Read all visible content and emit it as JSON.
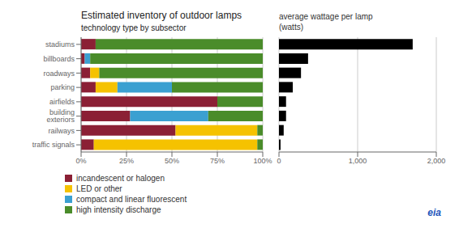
{
  "chart_data": [
    {
      "type": "bar",
      "title": "Estimated inventory of outdoor lamps",
      "subtitle": "technology type by subsector",
      "orientation": "horizontal",
      "stacked": true,
      "categories": [
        "traffic signals",
        "railways",
        "building exteriors",
        "airfields",
        "parking",
        "roadways",
        "billboards",
        "stadiums"
      ],
      "series": [
        {
          "name": "incandescent or halogen",
          "color": "#8B2035",
          "values": [
            7,
            52,
            27,
            75,
            8,
            5,
            2,
            8
          ]
        },
        {
          "name": "LED or other",
          "color": "#F5C200",
          "values": [
            90,
            45,
            0,
            0,
            12,
            5,
            0,
            0
          ]
        },
        {
          "name": "compact and linear fluorescent",
          "color": "#3BA0D1",
          "values": [
            0,
            0,
            43,
            0,
            30,
            0,
            3,
            0
          ]
        },
        {
          "name": "high intensity discharge",
          "color": "#4A8C2A",
          "values": [
            3,
            3,
            30,
            25,
            50,
            90,
            95,
            92
          ]
        }
      ],
      "xlim": [
        0,
        100
      ],
      "xticks": [
        {
          "value": 0,
          "label": "0%"
        },
        {
          "value": 25,
          "label": "25%"
        },
        {
          "value": 50,
          "label": "50%"
        },
        {
          "value": 75,
          "label": "75%"
        },
        {
          "value": 100,
          "label": "100%"
        }
      ],
      "grid": true,
      "legend": "lower left"
    },
    {
      "type": "bar",
      "title": "average wattage per lamp",
      "subtitle": "(watts)",
      "orientation": "horizontal",
      "categories": [
        "traffic signals",
        "railways",
        "building exteriors",
        "airfields",
        "parking",
        "roadways",
        "billboards",
        "stadiums"
      ],
      "values": [
        20,
        60,
        90,
        90,
        175,
        280,
        370,
        1700
      ],
      "color": "#000000",
      "xlim": [
        0,
        2000
      ],
      "xticks": [
        0,
        {
          "value": 1000,
          "label": "1,000"
        },
        {
          "value": 2000,
          "label": "2,000"
        }
      ],
      "grid": true,
      "tick_labels": "x",
      "annotations": [
        "eia"
      ]
    }
  ]
}
